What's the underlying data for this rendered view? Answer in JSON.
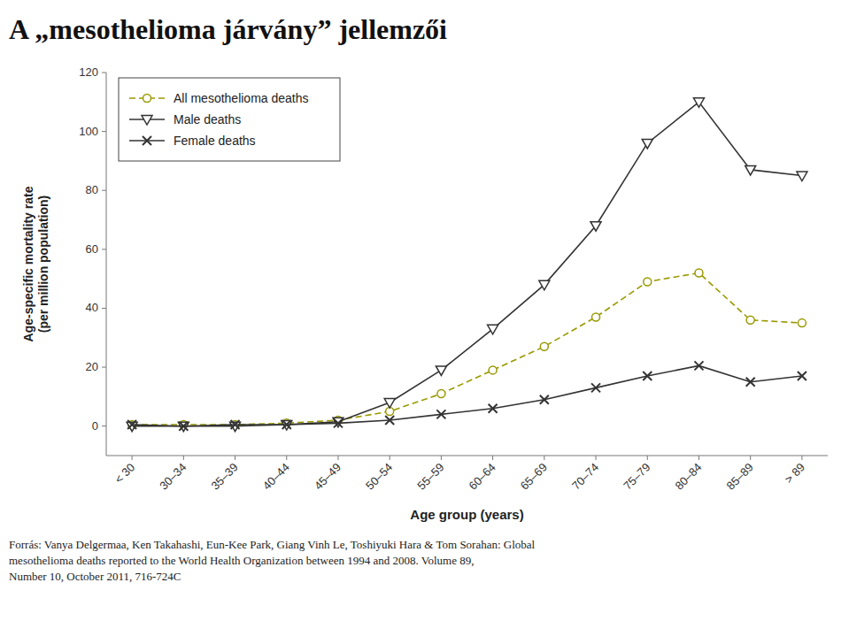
{
  "chart_data": {
    "type": "line",
    "title": "A „mesothelioma járvány” jellemzői",
    "x_label": "Age group (years)",
    "y_label": "Age-specific mortality rate\n(per million population)",
    "categories": [
      "< 30",
      "30–34",
      "35–39",
      "40–44",
      "45–49",
      "50–54",
      "55–59",
      "60–64",
      "65–69",
      "70–74",
      "75–79",
      "80–84",
      "85–89",
      "> 89"
    ],
    "series": [
      {
        "name": "All mesothelioma deaths",
        "color": "#999900",
        "marker": "circle",
        "line_style": "dashed",
        "values": [
          0.5,
          0.5,
          0.5,
          1.0,
          2.0,
          5.0,
          11.0,
          19.0,
          27.0,
          37.0,
          49.0,
          52.0,
          36.0,
          35.0
        ]
      },
      {
        "name": "Male deaths",
        "color": "#333333",
        "marker": "triangle-down",
        "line_style": "solid",
        "values": [
          0.0,
          0.0,
          0.0,
          0.5,
          1.5,
          8.0,
          19.0,
          33.0,
          48.0,
          68.0,
          96.0,
          110.0,
          87.0,
          85.0
        ]
      },
      {
        "name": "Female deaths",
        "color": "#333333",
        "marker": "x",
        "line_style": "solid",
        "values": [
          0.5,
          0.0,
          0.5,
          0.5,
          1.0,
          2.0,
          4.0,
          6.0,
          9.0,
          13.0,
          17.0,
          20.5,
          15.0,
          17.0
        ]
      }
    ],
    "ylim": [
      -10,
      120
    ],
    "yticks": [
      0,
      20,
      40,
      60,
      80,
      100,
      120
    ],
    "grid": false,
    "legend": "upper left",
    "annotations": [
      "Forrás: Vanya Delgermaa, Ken Takahashi, Eun-Kee Park, Giang Vinh Le, Toshiyuki Hara & Tom Sorahan: Global",
      "mesothelioma deaths reported to the World Health Organization between 1994 and 2008. Volume 89,",
      "Number 10, October 2011, 716-724C"
    ]
  }
}
